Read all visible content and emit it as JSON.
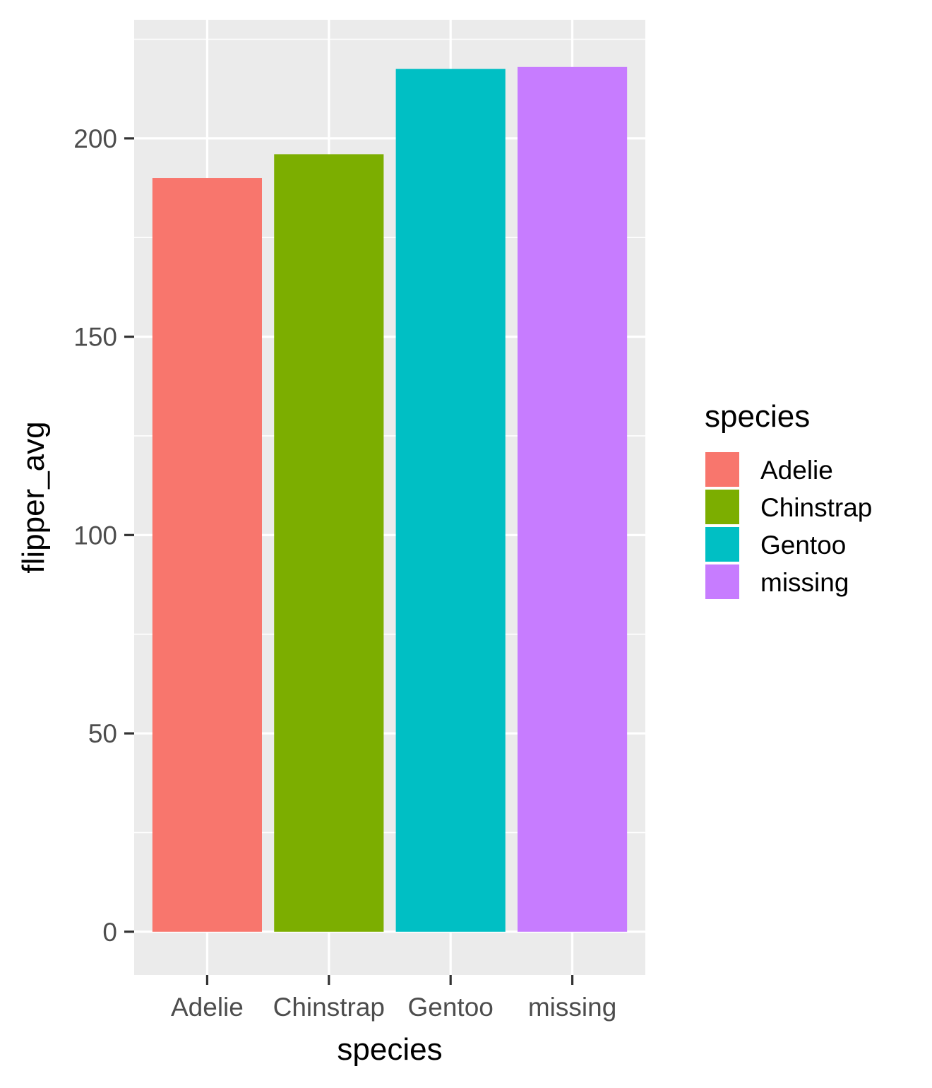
{
  "chart_data": {
    "type": "bar",
    "categories": [
      "Adelie",
      "Chinstrap",
      "Gentoo",
      "missing"
    ],
    "values": [
      190,
      196,
      217.5,
      218
    ],
    "xlabel": "species",
    "ylabel": "flipper_avg",
    "ylim": [
      -10.9,
      229.9
    ],
    "yticks": [
      0,
      50,
      100,
      150,
      200
    ],
    "grid": true,
    "legend": {
      "title": "species",
      "position": "right",
      "entries": [
        "Adelie",
        "Chinstrap",
        "Gentoo",
        "missing"
      ]
    },
    "colors": {
      "Adelie": "#F8766D",
      "Chinstrap": "#7CAE00",
      "Gentoo": "#00BFC4",
      "missing": "#C77CFF"
    },
    "panel_background": "#EBEBEB",
    "grid_color": "#FFFFFF"
  }
}
